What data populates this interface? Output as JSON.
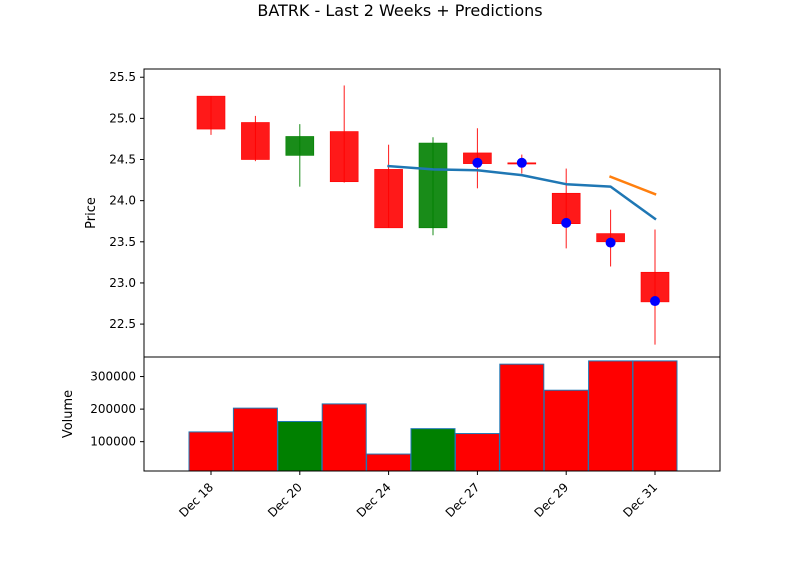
{
  "chart_data": {
    "type": "candlestick",
    "title": "BATRK - Last 2 Weeks + Predictions",
    "price_panel": {
      "ylabel": "Price",
      "ylim": [
        22.1,
        25.6
      ],
      "yticks": [
        "25.5",
        "25.0",
        "24.5",
        "24.0",
        "23.5",
        "23.0",
        "22.5"
      ],
      "grid": false
    },
    "volume_panel": {
      "ylabel": "Volume",
      "ylim": [
        10000,
        360000
      ],
      "yticks": [
        "300000",
        "200000",
        "100000"
      ],
      "grid": false
    },
    "x_tick_labels": [
      "Dec 18",
      "Dec 20",
      "Dec 24",
      "Dec 27",
      "Dec 29",
      "Dec 31"
    ],
    "x_tick_positions": [
      0,
      2,
      4,
      6,
      8,
      10
    ],
    "candles": [
      {
        "open": 25.27,
        "high": 25.27,
        "low": 24.8,
        "close": 24.87,
        "volume": 130000,
        "direction": "down"
      },
      {
        "open": 24.95,
        "high": 25.03,
        "low": 24.48,
        "close": 24.5,
        "volume": 203000,
        "direction": "down"
      },
      {
        "open": 24.55,
        "high": 24.93,
        "low": 24.17,
        "close": 24.78,
        "volume": 162000,
        "direction": "up"
      },
      {
        "open": 24.84,
        "high": 25.4,
        "low": 24.22,
        "close": 24.23,
        "volume": 216000,
        "direction": "down"
      },
      {
        "open": 24.38,
        "high": 24.68,
        "low": 23.67,
        "close": 23.67,
        "volume": 62000,
        "direction": "down"
      },
      {
        "open": 23.67,
        "high": 24.77,
        "low": 23.58,
        "close": 24.7,
        "volume": 140000,
        "direction": "up"
      },
      {
        "open": 24.58,
        "high": 24.88,
        "low": 24.15,
        "close": 24.45,
        "volume": 125000,
        "direction": "down"
      },
      {
        "open": 24.46,
        "high": 24.56,
        "low": 24.33,
        "close": 24.45,
        "volume": 338000,
        "direction": "down"
      },
      {
        "open": 24.09,
        "high": 24.39,
        "low": 23.42,
        "close": 23.72,
        "volume": 258000,
        "direction": "down"
      },
      {
        "open": 23.6,
        "high": 23.89,
        "low": 23.2,
        "close": 23.5,
        "volume": 348000,
        "direction": "down"
      },
      {
        "open": 23.13,
        "high": 23.65,
        "low": 22.25,
        "close": 22.77,
        "volume": 348000,
        "direction": "down"
      }
    ],
    "series": [
      {
        "color": "#1f77b4",
        "x": [
          4,
          5,
          6,
          7,
          8,
          9,
          10
        ],
        "values": [
          24.42,
          24.38,
          24.37,
          24.31,
          24.2,
          24.17,
          23.78
        ]
      },
      {
        "color": "#ff7f0e",
        "x": [
          9,
          10
        ],
        "values": [
          24.29,
          24.08
        ]
      }
    ],
    "markers": {
      "color": "#0000ff",
      "x": [
        6,
        7,
        8,
        9,
        10
      ],
      "values": [
        24.46,
        24.46,
        23.73,
        23.49,
        22.78
      ]
    },
    "colors": {
      "up": "#008000",
      "down": "#ff0000",
      "bar_edge": "#1f77b4"
    }
  }
}
